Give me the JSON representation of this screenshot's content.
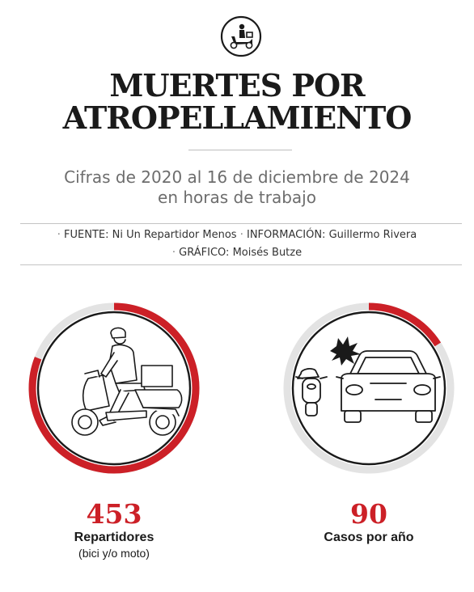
{
  "header": {
    "logo_icon": "delivery-scooter-icon",
    "title_line1": "MUERTES POR",
    "title_line2": "ATROPELLAMIENTO",
    "subtitle_line1": "Cifras de 2020 al 16 de diciembre de 2024",
    "subtitle_line2": "en horas de trabajo"
  },
  "credits": {
    "bullet": "·",
    "source_label": "FUENTE:",
    "source_value": "Ni Un Repartidor Menos",
    "info_label": "INFORMACIÓN:",
    "info_value": "Guillermo Rivera",
    "graphic_label": "GRÁFICO:",
    "graphic_value": "Moisés Butze"
  },
  "stats": [
    {
      "icon": "delivery-scooter-rider-icon",
      "value": "453",
      "label": "Repartidores",
      "sublabel": "(bici y/o moto)",
      "gauge_fraction": 0.81
    },
    {
      "icon": "car-hits-scooter-icon",
      "value": "90",
      "label": "Casos por año",
      "sublabel": "",
      "gauge_fraction": 0.16
    }
  ],
  "colors": {
    "accent": "#cc2027",
    "track": "#e3e3e3",
    "ink": "#1a1a1a"
  }
}
